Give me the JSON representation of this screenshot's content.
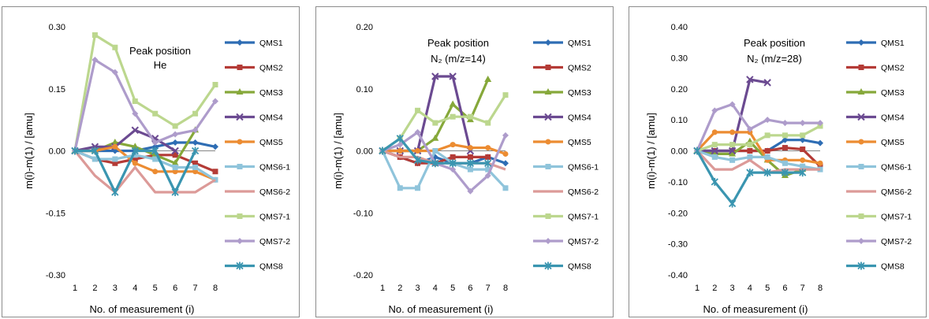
{
  "chart_data": [
    {
      "type": "line",
      "annotation": [
        "Peak position",
        "He"
      ],
      "xlabel": "No. of measurement (i)",
      "ylabel": "m(i)-m(1) / [amu]",
      "ylim": [
        -0.3,
        0.3
      ],
      "yticks": [
        0.3,
        0.15,
        0.0,
        -0.15,
        -0.3
      ],
      "ytick_labels": [
        "0.30",
        "0.15",
        "0.00",
        "-0.15",
        "-0.30"
      ],
      "x": [
        1,
        2,
        3,
        4,
        5,
        6,
        7,
        8
      ],
      "legend_position": "right",
      "series": [
        {
          "name": "QMS1",
          "color": "#2e6db4",
          "marker": "diamond",
          "values": [
            0.0,
            0.0,
            0.0,
            0.0,
            0.01,
            0.02,
            0.02,
            0.01
          ]
        },
        {
          "name": "QMS2",
          "color": "#b43b36",
          "marker": "square",
          "values": [
            0.0,
            -0.02,
            -0.03,
            -0.02,
            -0.01,
            -0.01,
            -0.03,
            -0.05
          ]
        },
        {
          "name": "QMS3",
          "color": "#86a83a",
          "marker": "triangle",
          "values": [
            0.0,
            0.0,
            0.02,
            0.01,
            -0.01,
            -0.03,
            0.05,
            null
          ]
        },
        {
          "name": "QMS4",
          "color": "#6b4a91",
          "marker": "x",
          "values": [
            0.0,
            0.01,
            0.01,
            0.05,
            0.03,
            0.0,
            null,
            null
          ]
        },
        {
          "name": "QMS5",
          "color": "#ec8c32",
          "marker": "circle",
          "values": [
            0.0,
            0.0,
            0.01,
            -0.03,
            -0.05,
            -0.05,
            -0.05,
            -0.07
          ]
        },
        {
          "name": "QMS6-1",
          "color": "#8fc4db",
          "marker": "square",
          "values": [
            0.0,
            -0.02,
            -0.02,
            -0.01,
            -0.02,
            -0.04,
            -0.04,
            -0.07
          ]
        },
        {
          "name": "QMS6-2",
          "color": "#dc9a98",
          "marker": "none",
          "values": [
            0.0,
            -0.06,
            -0.1,
            -0.04,
            -0.1,
            -0.1,
            -0.1,
            -0.07
          ]
        },
        {
          "name": "QMS7-1",
          "color": "#bcd78e",
          "marker": "square",
          "values": [
            0.0,
            0.28,
            0.25,
            0.12,
            0.09,
            0.06,
            0.09,
            0.16
          ]
        },
        {
          "name": "QMS7-2",
          "color": "#ae9ccb",
          "marker": "diamond",
          "values": [
            0.0,
            0.22,
            0.19,
            0.09,
            0.02,
            0.04,
            0.05,
            0.12
          ]
        },
        {
          "name": "QMS8",
          "color": "#3a95b0",
          "marker": "star",
          "values": [
            0.0,
            0.0,
            -0.1,
            0.0,
            0.0,
            -0.1,
            0.0,
            null
          ]
        }
      ]
    },
    {
      "type": "line",
      "annotation": [
        "Peak position",
        "N₂ (m/z=14)"
      ],
      "xlabel": "No. of measurement (i)",
      "ylabel": "m(i)-m(1) / [amu]",
      "ylim": [
        -0.2,
        0.2
      ],
      "yticks": [
        0.2,
        0.1,
        0.0,
        -0.1,
        -0.2
      ],
      "ytick_labels": [
        "0.20",
        "0.10",
        "0.00",
        "-0.10",
        "-0.20"
      ],
      "x": [
        1,
        2,
        3,
        4,
        5,
        6,
        7,
        8
      ],
      "legend_position": "right",
      "series": [
        {
          "name": "QMS1",
          "color": "#2e6db4",
          "marker": "diamond",
          "values": [
            0.0,
            -0.01,
            -0.02,
            -0.01,
            -0.02,
            -0.02,
            -0.01,
            -0.02
          ]
        },
        {
          "name": "QMS2",
          "color": "#b43b36",
          "marker": "square",
          "values": [
            0.0,
            -0.01,
            -0.02,
            -0.02,
            -0.01,
            -0.01,
            -0.01,
            null
          ]
        },
        {
          "name": "QMS3",
          "color": "#86a83a",
          "marker": "triangle",
          "values": [
            0.0,
            0.0,
            0.0,
            0.02,
            0.075,
            0.05,
            0.115,
            null
          ]
        },
        {
          "name": "QMS4",
          "color": "#6b4a91",
          "marker": "x",
          "values": [
            0.0,
            0.0,
            0.0,
            0.12,
            0.12,
            0.0,
            null,
            null
          ]
        },
        {
          "name": "QMS5",
          "color": "#ec8c32",
          "marker": "circle",
          "values": [
            0.0,
            0.0,
            0.0,
            0.0,
            0.01,
            0.005,
            0.005,
            -0.005
          ]
        },
        {
          "name": "QMS6-1",
          "color": "#8fc4db",
          "marker": "square",
          "values": [
            0.0,
            -0.06,
            -0.06,
            0.0,
            -0.02,
            -0.03,
            -0.03,
            -0.06
          ]
        },
        {
          "name": "QMS6-2",
          "color": "#dc9a98",
          "marker": "none",
          "values": [
            0.0,
            -0.01,
            -0.01,
            -0.02,
            -0.02,
            -0.02,
            -0.02,
            -0.03
          ]
        },
        {
          "name": "QMS7-1",
          "color": "#bcd78e",
          "marker": "square",
          "values": [
            0.0,
            0.02,
            0.065,
            0.045,
            0.055,
            0.055,
            0.045,
            0.09
          ]
        },
        {
          "name": "QMS7-2",
          "color": "#ae9ccb",
          "marker": "diamond",
          "values": [
            0.0,
            0.01,
            0.03,
            -0.02,
            -0.03,
            -0.065,
            -0.04,
            0.025
          ]
        },
        {
          "name": "QMS8",
          "color": "#3a95b0",
          "marker": "star",
          "values": [
            0.0,
            0.02,
            -0.015,
            -0.02,
            -0.02,
            -0.02,
            -0.02,
            null
          ]
        }
      ]
    },
    {
      "type": "line",
      "annotation": [
        "Peak position",
        "N₂ (m/z=28)"
      ],
      "xlabel": "No. of measurement (i)",
      "ylabel": "m(i)-m(1) / [amu]",
      "ylim": [
        -0.4,
        0.4
      ],
      "yticks": [
        0.4,
        0.3,
        0.2,
        0.1,
        0.0,
        -0.1,
        -0.2,
        -0.3,
        -0.4
      ],
      "ytick_labels": [
        "0.40",
        "0.30",
        "0.20",
        "0.10",
        "0.00",
        "-0.10",
        "-0.20",
        "-0.30",
        "-0.40"
      ],
      "x": [
        1,
        2,
        3,
        4,
        5,
        6,
        7,
        8
      ],
      "legend_position": "right",
      "series": [
        {
          "name": "QMS1",
          "color": "#2e6db4",
          "marker": "diamond",
          "values": [
            0.0,
            0.0,
            0.0,
            0.0,
            0.0,
            0.035,
            0.035,
            0.025
          ]
        },
        {
          "name": "QMS2",
          "color": "#b43b36",
          "marker": "square",
          "values": [
            0.0,
            0.0,
            0.0,
            0.0,
            0.0,
            0.01,
            0.005,
            -0.05
          ]
        },
        {
          "name": "QMS3",
          "color": "#86a83a",
          "marker": "triangle",
          "values": [
            0.0,
            -0.01,
            -0.01,
            0.03,
            -0.03,
            -0.08,
            -0.06,
            null
          ]
        },
        {
          "name": "QMS4",
          "color": "#6b4a91",
          "marker": "x",
          "values": [
            0.0,
            0.0,
            0.0,
            0.23,
            0.22,
            null,
            null,
            null
          ]
        },
        {
          "name": "QMS5",
          "color": "#ec8c32",
          "marker": "circle",
          "values": [
            0.0,
            0.06,
            0.06,
            0.06,
            -0.03,
            -0.03,
            -0.03,
            -0.04
          ]
        },
        {
          "name": "QMS6-1",
          "color": "#8fc4db",
          "marker": "square",
          "values": [
            0.0,
            -0.02,
            -0.03,
            -0.02,
            -0.02,
            -0.04,
            -0.05,
            -0.06
          ]
        },
        {
          "name": "QMS6-2",
          "color": "#dc9a98",
          "marker": "none",
          "values": [
            0.0,
            -0.06,
            -0.06,
            -0.03,
            -0.07,
            -0.06,
            -0.06,
            -0.06
          ]
        },
        {
          "name": "QMS7-1",
          "color": "#bcd78e",
          "marker": "square",
          "values": [
            0.0,
            0.02,
            0.02,
            0.02,
            0.05,
            0.05,
            0.05,
            0.08
          ]
        },
        {
          "name": "QMS7-2",
          "color": "#ae9ccb",
          "marker": "diamond",
          "values": [
            0.0,
            0.13,
            0.15,
            0.07,
            0.1,
            0.09,
            0.09,
            0.09
          ]
        },
        {
          "name": "QMS8",
          "color": "#3a95b0",
          "marker": "star",
          "values": [
            0.0,
            -0.1,
            -0.17,
            -0.07,
            -0.07,
            -0.07,
            -0.07,
            null
          ]
        }
      ]
    }
  ]
}
